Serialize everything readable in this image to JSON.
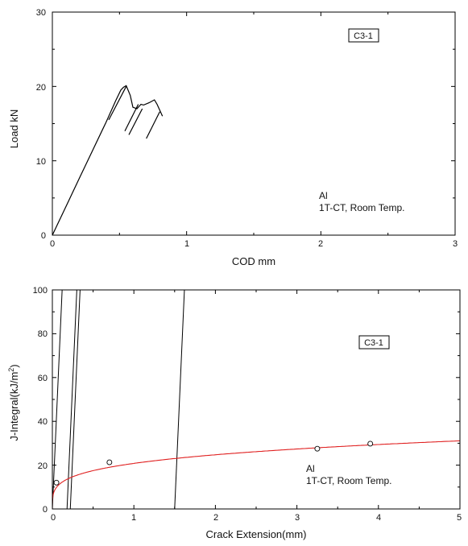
{
  "chart_data": [
    {
      "type": "line",
      "tag": "C3-1",
      "xlabel": "COD mm",
      "ylabel": "Load kN",
      "xlim": [
        0,
        3
      ],
      "ylim": [
        0,
        30
      ],
      "xticks": [
        "0",
        "1",
        "2",
        "3"
      ],
      "yticks": [
        "0",
        "10",
        "20",
        "30"
      ],
      "annotation": [
        "Al",
        "1T-CT, Room Temp."
      ],
      "series": [
        {
          "color": "#000000",
          "points": [
            [
              0.0,
              0.0
            ],
            [
              0.1,
              3.8
            ],
            [
              0.2,
              7.6
            ],
            [
              0.3,
              11.4
            ],
            [
              0.4,
              15.2
            ],
            [
              0.47,
              18.0
            ],
            [
              0.51,
              19.5
            ],
            [
              0.53,
              19.9
            ],
            [
              0.55,
              20.1
            ],
            [
              0.58,
              18.8
            ],
            [
              0.6,
              17.2
            ],
            [
              0.63,
              17.0
            ],
            [
              0.66,
              17.6
            ],
            [
              0.68,
              17.5
            ],
            [
              0.72,
              17.8
            ],
            [
              0.76,
              18.2
            ],
            [
              0.78,
              17.6
            ],
            [
              0.82,
              16.0
            ]
          ]
        }
      ],
      "unloading_lines": [
        [
          [
            0.42,
            15.5
          ],
          [
            0.55,
            20.0
          ]
        ],
        [
          [
            0.54,
            14.0
          ],
          [
            0.64,
            17.6
          ]
        ],
        [
          [
            0.57,
            13.5
          ],
          [
            0.67,
            17.0
          ]
        ],
        [
          [
            0.7,
            13.0
          ],
          [
            0.8,
            16.6
          ]
        ]
      ]
    },
    {
      "type": "scatter",
      "tag": "C3-1",
      "xlabel": "Crack Extension(mm)",
      "ylabel": "J-Integral(kJ/m²)",
      "ylabel_parts": {
        "main": "J-Integral(kJ/m",
        "sup": "2",
        "end": ")"
      },
      "xlim": [
        0,
        5
      ],
      "ylim": [
        0,
        100
      ],
      "xticks": [
        "0",
        "1",
        "2",
        "3",
        "4",
        "5"
      ],
      "yticks": [
        "0",
        "20",
        "40",
        "60",
        "80",
        "100"
      ],
      "annotation": [
        "Al",
        "1T-CT, Room Temp."
      ],
      "points": [
        [
          0.05,
          12.0
        ],
        [
          0.7,
          21.3
        ],
        [
          3.25,
          27.5
        ],
        [
          3.9,
          29.8
        ]
      ],
      "fit_curve": {
        "color": "#e02020",
        "coef": 20.8,
        "exponent": 0.25
      },
      "construction_lines": [
        [
          [
            0.0,
            0.0
          ],
          [
            0.12,
            100.0
          ]
        ],
        [
          [
            0.18,
            0.0
          ],
          [
            0.3,
            100.0
          ]
        ],
        [
          [
            0.22,
            0.0
          ],
          [
            0.34,
            100.0
          ]
        ],
        [
          [
            1.5,
            0.0
          ],
          [
            1.62,
            100.0
          ]
        ]
      ]
    }
  ]
}
